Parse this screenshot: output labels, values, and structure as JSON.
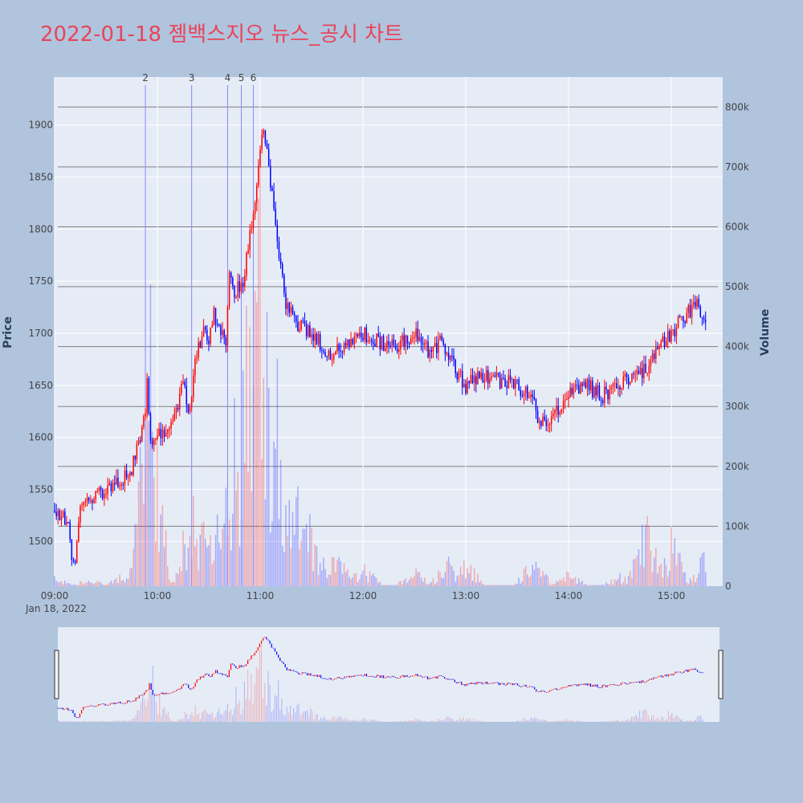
{
  "title": "2022-01-18 젬백스지오 뉴스_공시 차트",
  "colors": {
    "background": "#b0c4de",
    "plot_bg": "#e5ecf6",
    "up": "#ff0000",
    "down": "#0000ff",
    "title": "#e8455a",
    "news_line": "#8888ff",
    "volume_grid": "#7f7f7f"
  },
  "chart_data": {
    "type": "candlestick",
    "date_label": "Jan 18, 2022",
    "x_ticks": [
      "09:00",
      "10:00",
      "11:00",
      "12:00",
      "13:00",
      "14:00",
      "15:00"
    ],
    "y_label": "Price",
    "y_ticks": [
      1500,
      1550,
      1600,
      1650,
      1700,
      1750,
      1800,
      1850,
      1900
    ],
    "y_range": [
      1457,
      1946
    ],
    "y2_label": "Volume",
    "y2_ticks": [
      "0",
      "100k",
      "200k",
      "300k",
      "400k",
      "500k",
      "600k",
      "700k",
      "800k"
    ],
    "y2_range": [
      0,
      850000
    ],
    "x_range": [
      "09:00",
      "15:30"
    ],
    "grid": true,
    "legend": "none",
    "rangeslider": true,
    "news_markers": [
      {
        "label": "2",
        "time": "09:53"
      },
      {
        "label": "3",
        "time": "10:20"
      },
      {
        "label": "4",
        "time": "10:41"
      },
      {
        "label": "5",
        "time": "10:49"
      },
      {
        "label": "6",
        "time": "10:56"
      }
    ],
    "price_path": [
      [
        "09:00",
        1530
      ],
      [
        "09:05",
        1525
      ],
      [
        "09:08",
        1515
      ],
      [
        "09:10",
        1485
      ],
      [
        "09:12",
        1480
      ],
      [
        "09:15",
        1530
      ],
      [
        "09:20",
        1540
      ],
      [
        "09:30",
        1550
      ],
      [
        "09:35",
        1555
      ],
      [
        "09:40",
        1560
      ],
      [
        "09:45",
        1570
      ],
      [
        "09:50",
        1600
      ],
      [
        "09:53",
        1620
      ],
      [
        "09:54",
        1660
      ],
      [
        "09:55",
        1625
      ],
      [
        "09:56",
        1600
      ],
      [
        "09:58",
        1590
      ],
      [
        "10:00",
        1600
      ],
      [
        "10:05",
        1610
      ],
      [
        "10:10",
        1620
      ],
      [
        "10:15",
        1650
      ],
      [
        "10:18",
        1630
      ],
      [
        "10:20",
        1640
      ],
      [
        "10:22",
        1680
      ],
      [
        "10:27",
        1700
      ],
      [
        "10:30",
        1690
      ],
      [
        "10:33",
        1720
      ],
      [
        "10:36",
        1705
      ],
      [
        "10:40",
        1690
      ],
      [
        "10:42",
        1760
      ],
      [
        "10:45",
        1740
      ],
      [
        "10:50",
        1750
      ],
      [
        "10:53",
        1780
      ],
      [
        "10:57",
        1830
      ],
      [
        "11:00",
        1880
      ],
      [
        "11:02",
        1890
      ],
      [
        "11:05",
        1860
      ],
      [
        "11:08",
        1820
      ],
      [
        "11:12",
        1760
      ],
      [
        "11:15",
        1730
      ],
      [
        "11:20",
        1710
      ],
      [
        "11:30",
        1700
      ],
      [
        "11:40",
        1680
      ],
      [
        "11:50",
        1690
      ],
      [
        "12:00",
        1700
      ],
      [
        "12:10",
        1690
      ],
      [
        "12:20",
        1690
      ],
      [
        "12:30",
        1700
      ],
      [
        "12:40",
        1680
      ],
      [
        "12:45",
        1690
      ],
      [
        "12:50",
        1680
      ],
      [
        "12:55",
        1660
      ],
      [
        "13:00",
        1650
      ],
      [
        "13:10",
        1660
      ],
      [
        "13:20",
        1655
      ],
      [
        "13:30",
        1650
      ],
      [
        "13:40",
        1640
      ],
      [
        "13:42",
        1610
      ],
      [
        "13:50",
        1620
      ],
      [
        "14:00",
        1640
      ],
      [
        "14:10",
        1650
      ],
      [
        "14:20",
        1640
      ],
      [
        "14:30",
        1650
      ],
      [
        "14:40",
        1660
      ],
      [
        "14:45",
        1665
      ],
      [
        "14:50",
        1680
      ],
      [
        "14:55",
        1690
      ],
      [
        "15:00",
        1700
      ],
      [
        "15:05",
        1710
      ],
      [
        "15:10",
        1720
      ],
      [
        "15:15",
        1725
      ],
      [
        "15:20",
        1710
      ]
    ],
    "volume_clusters": [
      {
        "time": "09:00",
        "level": 20000
      },
      {
        "time": "09:20",
        "level": 15000
      },
      {
        "time": "09:40",
        "level": 25000
      },
      {
        "time": "09:53",
        "level": 80000
      },
      {
        "time": "09:55",
        "level": 520000
      },
      {
        "time": "10:00",
        "level": 40000
      },
      {
        "time": "10:20",
        "level": 150000
      },
      {
        "time": "10:30",
        "level": 200000
      },
      {
        "time": "10:45",
        "level": 300000
      },
      {
        "time": "10:55",
        "level": 600000
      },
      {
        "time": "11:00",
        "level": 650000
      },
      {
        "time": "11:10",
        "level": 400000
      },
      {
        "time": "11:20",
        "level": 200000
      },
      {
        "time": "11:30",
        "level": 130000
      },
      {
        "time": "11:45",
        "level": 60000
      },
      {
        "time": "12:00",
        "level": 40000
      },
      {
        "time": "12:30",
        "level": 30000
      },
      {
        "time": "12:50",
        "level": 50000
      },
      {
        "time": "13:00",
        "level": 50000
      },
      {
        "time": "13:40",
        "level": 55000
      },
      {
        "time": "14:00",
        "level": 25000
      },
      {
        "time": "14:30",
        "level": 20000
      },
      {
        "time": "14:45",
        "level": 120000
      },
      {
        "time": "15:00",
        "level": 90000
      },
      {
        "time": "15:20",
        "level": 60000
      }
    ]
  }
}
